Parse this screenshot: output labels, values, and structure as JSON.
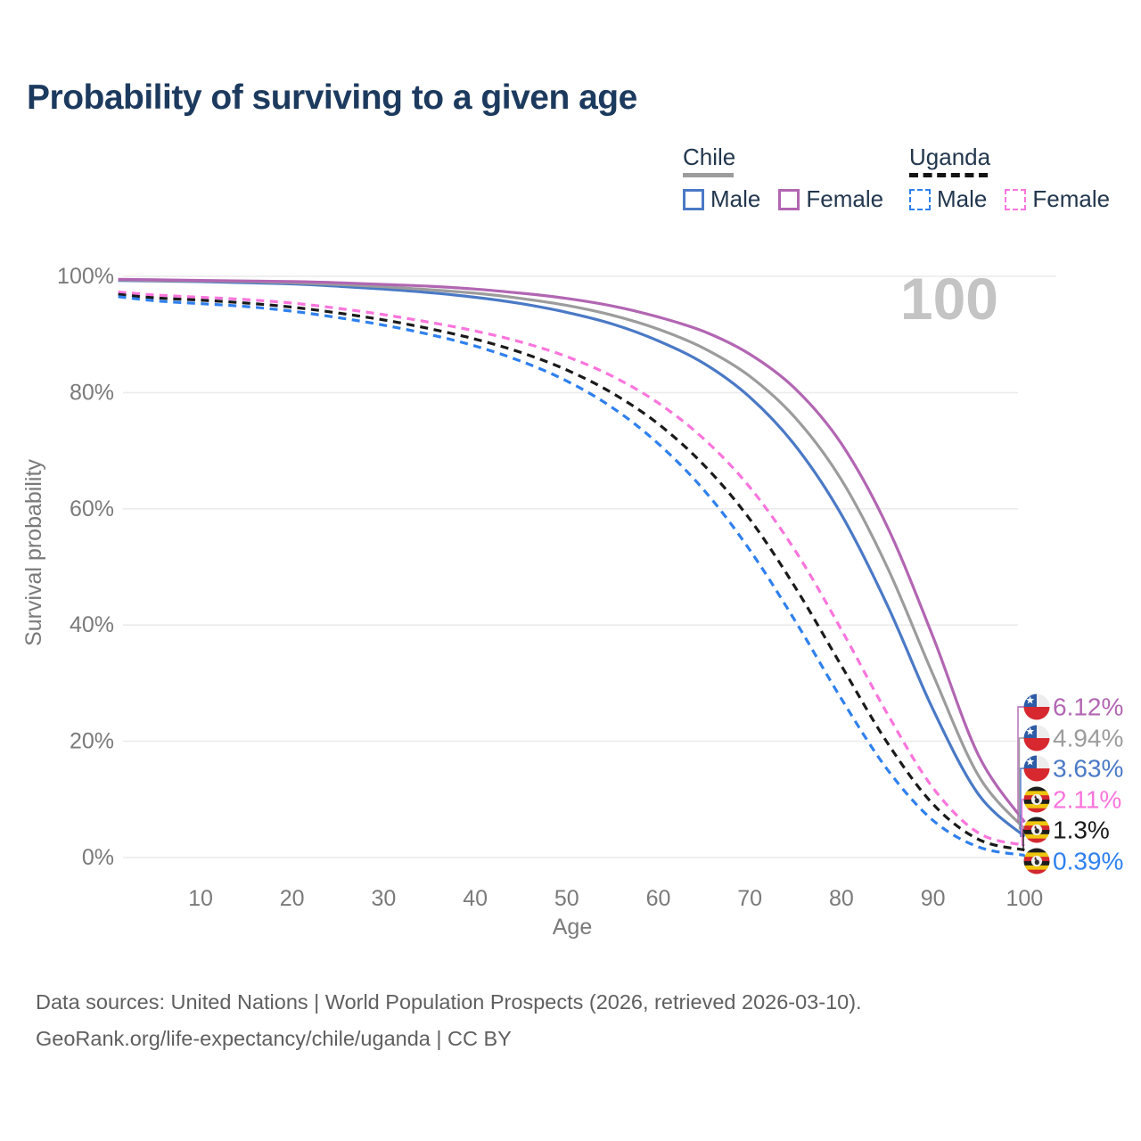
{
  "title": "Probability of surviving to a given age",
  "hover_age_label": "100",
  "legend": {
    "groups": [
      {
        "name": "Chile",
        "line_style": "solid",
        "underline_color": "#9c9c9c",
        "items": [
          {
            "label": "Male",
            "series": "chile_male"
          },
          {
            "label": "Female",
            "series": "chile_female"
          }
        ]
      },
      {
        "name": "Uganda",
        "line_style": "dashed",
        "underline_color": "#141414",
        "items": [
          {
            "label": "Male",
            "series": "uganda_male"
          },
          {
            "label": "Female",
            "series": "uganda_female"
          }
        ]
      }
    ]
  },
  "chart_data": {
    "type": "line",
    "title": "Probability of surviving to a given age",
    "xlabel": "Age",
    "ylabel": "Survival probability",
    "xlim": [
      0,
      100
    ],
    "ylim": [
      0,
      100
    ],
    "grid": "horizontal",
    "x_ticks": [
      10,
      20,
      30,
      40,
      50,
      60,
      70,
      80,
      90,
      100
    ],
    "y_tick_labels": [
      "0%",
      "20%",
      "40%",
      "60%",
      "80%",
      "100%"
    ],
    "x": [
      1,
      5,
      10,
      15,
      20,
      25,
      30,
      35,
      40,
      45,
      50,
      55,
      60,
      65,
      70,
      75,
      80,
      85,
      90,
      95,
      100
    ],
    "series": [
      {
        "id": "chile_female",
        "name": "Chile Female",
        "country": "Chile",
        "sex": "Female",
        "color": "#b266b2",
        "dash": "solid",
        "end_label": "6.12%",
        "end_value": 6.12,
        "values": [
          99.5,
          99.4,
          99.3,
          99.2,
          99.1,
          98.9,
          98.6,
          98.3,
          97.8,
          97.1,
          96.2,
          94.9,
          93.0,
          90.5,
          86.6,
          80.6,
          71.2,
          57.0,
          38.0,
          17.5,
          6.12
        ]
      },
      {
        "id": "chile_both",
        "name": "Chile Both sexes",
        "country": "Chile",
        "sex": "Both",
        "color": "#9c9c9c",
        "dash": "solid",
        "end_label": "4.94%",
        "end_value": 4.94,
        "values": [
          99.4,
          99.3,
          99.2,
          99.1,
          98.9,
          98.6,
          98.2,
          97.7,
          97.1,
          96.2,
          95.0,
          93.3,
          90.9,
          87.6,
          82.8,
          75.6,
          65.0,
          50.0,
          31.5,
          14.0,
          4.94
        ]
      },
      {
        "id": "chile_male",
        "name": "Chile Male",
        "country": "Chile",
        "sex": "Male",
        "color": "#4a79c6",
        "dash": "solid",
        "end_label": "3.63%",
        "end_value": 3.63,
        "values": [
          99.3,
          99.2,
          99.1,
          98.9,
          98.7,
          98.3,
          97.8,
          97.2,
          96.4,
          95.3,
          93.8,
          91.8,
          88.9,
          85.0,
          79.2,
          70.8,
          59.0,
          43.5,
          25.5,
          10.8,
          3.63
        ]
      },
      {
        "id": "uganda_female",
        "name": "Uganda Female",
        "country": "Uganda",
        "sex": "Female",
        "color": "#fa75dc",
        "dash": "dashed",
        "end_label": "2.11%",
        "end_value": 2.11,
        "values": [
          97.3,
          96.8,
          96.4,
          96.0,
          95.4,
          94.5,
          93.4,
          92.1,
          90.6,
          88.7,
          86.2,
          82.8,
          78.2,
          72.0,
          63.7,
          52.7,
          39.2,
          24.8,
          12.0,
          4.2,
          2.11
        ]
      },
      {
        "id": "uganda_both",
        "name": "Uganda Both sexes",
        "country": "Uganda",
        "sex": "Both",
        "color": "#1a1a1a",
        "dash": "dashed",
        "end_label": "1.3%",
        "end_value": 1.3,
        "values": [
          96.9,
          96.3,
          95.9,
          95.4,
          94.7,
          93.7,
          92.5,
          91.0,
          89.2,
          86.9,
          83.9,
          79.9,
          74.6,
          67.5,
          58.2,
          46.4,
          33.0,
          19.8,
          9.2,
          3.1,
          1.3
        ]
      },
      {
        "id": "uganda_male",
        "name": "Uganda Male",
        "country": "Uganda",
        "sex": "Male",
        "color": "#2f80ee",
        "dash": "dashed",
        "end_label": "0.39%",
        "end_value": 0.39,
        "values": [
          96.5,
          95.8,
          95.3,
          94.8,
          94.0,
          92.9,
          91.6,
          90.0,
          88.0,
          85.4,
          82.0,
          77.4,
          71.2,
          63.2,
          52.9,
          40.6,
          27.3,
          15.2,
          6.4,
          1.8,
          0.39
        ]
      }
    ],
    "end_label_order": [
      "chile_female",
      "chile_both",
      "chile_male",
      "uganda_female",
      "uganda_both",
      "uganda_male"
    ],
    "flags": {
      "Chile": {
        "white": "#ededed",
        "red": "#d7282f",
        "blue": "#2e5ba6"
      },
      "Uganda": {
        "black": "#1d1d1d",
        "yellow": "#efc60e",
        "red": "#d22630",
        "white": "#f2f2f2"
      }
    }
  },
  "source_line1": "Data sources: United Nations | World Population Prospects (2026, retrieved 2026-03-10).",
  "source_line2": "GeoRank.org/life-expectancy/chile/uganda | CC BY"
}
